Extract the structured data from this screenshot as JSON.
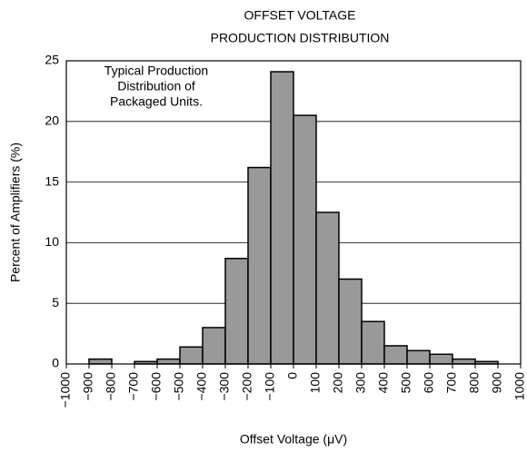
{
  "chart_data": {
    "type": "histogram",
    "title": [
      "OFFSET VOLTAGE",
      "PRODUCTION DISTRIBUTION"
    ],
    "annotation": [
      "Typical Production",
      "Distribution of",
      "Packaged Units."
    ],
    "x_label": "Offset Voltage (μV)",
    "y_label": "Percent of Amplifiers (%)",
    "bins": [
      -900,
      -800,
      -700,
      -600,
      -500,
      -400,
      -300,
      -200,
      -100,
      0,
      100,
      200,
      300,
      400,
      500,
      600,
      700,
      800,
      900
    ],
    "values": [
      0.4,
      0,
      0.2,
      0.4,
      1.4,
      3,
      8.7,
      16.2,
      24.1,
      20.5,
      12.5,
      7,
      3.5,
      1.5,
      1.1,
      0.8,
      0.4,
      0.2
    ],
    "color": "#999999",
    "xlim": [
      -1000,
      1000
    ],
    "xticks": [
      {
        "value": -1000,
        "label": "−1000"
      },
      {
        "value": -900,
        "label": "−900"
      },
      {
        "value": -800,
        "label": "−800"
      },
      {
        "value": -700,
        "label": "−700"
      },
      {
        "value": -600,
        "label": "−600"
      },
      {
        "value": -500,
        "label": "−500"
      },
      {
        "value": -400,
        "label": "−400"
      },
      {
        "value": -300,
        "label": "−300"
      },
      {
        "value": -200,
        "label": "−200"
      },
      {
        "value": -100,
        "label": "−100"
      },
      0,
      100,
      200,
      300,
      400,
      500,
      600,
      700,
      800,
      900,
      1000
    ],
    "ylim": [
      0,
      25
    ],
    "yticks": [
      0,
      5,
      10,
      15,
      20,
      25
    ],
    "grid": true
  }
}
